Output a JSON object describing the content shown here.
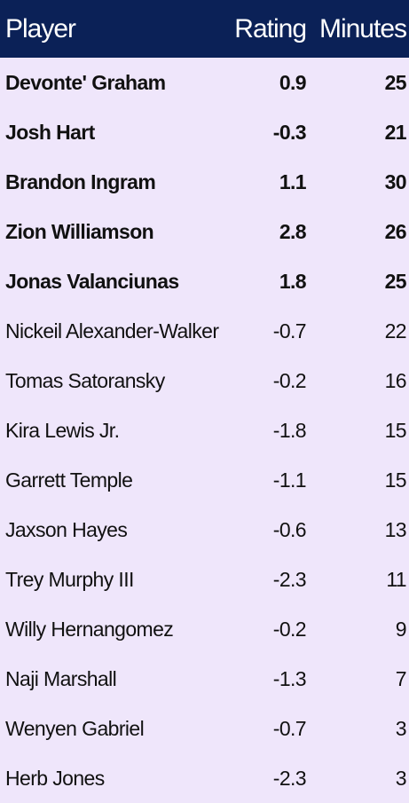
{
  "table": {
    "header": [
      "Player",
      "Rating",
      "Minutes"
    ],
    "rows": [
      [
        "Devonte' Graham",
        "0.9",
        "25"
      ],
      [
        "Josh Hart",
        "-0.3",
        "21"
      ],
      [
        "Brandon Ingram",
        "1.1",
        "30"
      ],
      [
        "Zion Williamson",
        "2.8",
        "26"
      ],
      [
        "Jonas Valanciunas",
        "1.8",
        "25"
      ],
      [
        "Nickeil Alexander-Walker",
        "-0.7",
        "22"
      ],
      [
        "Tomas Satoransky",
        "-0.2",
        "16"
      ],
      [
        "Kira Lewis Jr.",
        "-1.8",
        "15"
      ],
      [
        "Garrett Temple",
        "-1.1",
        "15"
      ],
      [
        "Jaxson Hayes",
        "-0.6",
        "13"
      ],
      [
        "Trey Murphy III",
        "-2.3",
        "11"
      ],
      [
        "Willy Hernangomez",
        "-0.2",
        "9"
      ],
      [
        "Naji Marshall",
        "-1.3",
        "7"
      ],
      [
        "Wenyen Gabriel",
        "-0.7",
        "3"
      ],
      [
        "Herb Jones",
        "-2.3",
        "3"
      ]
    ]
  }
}
